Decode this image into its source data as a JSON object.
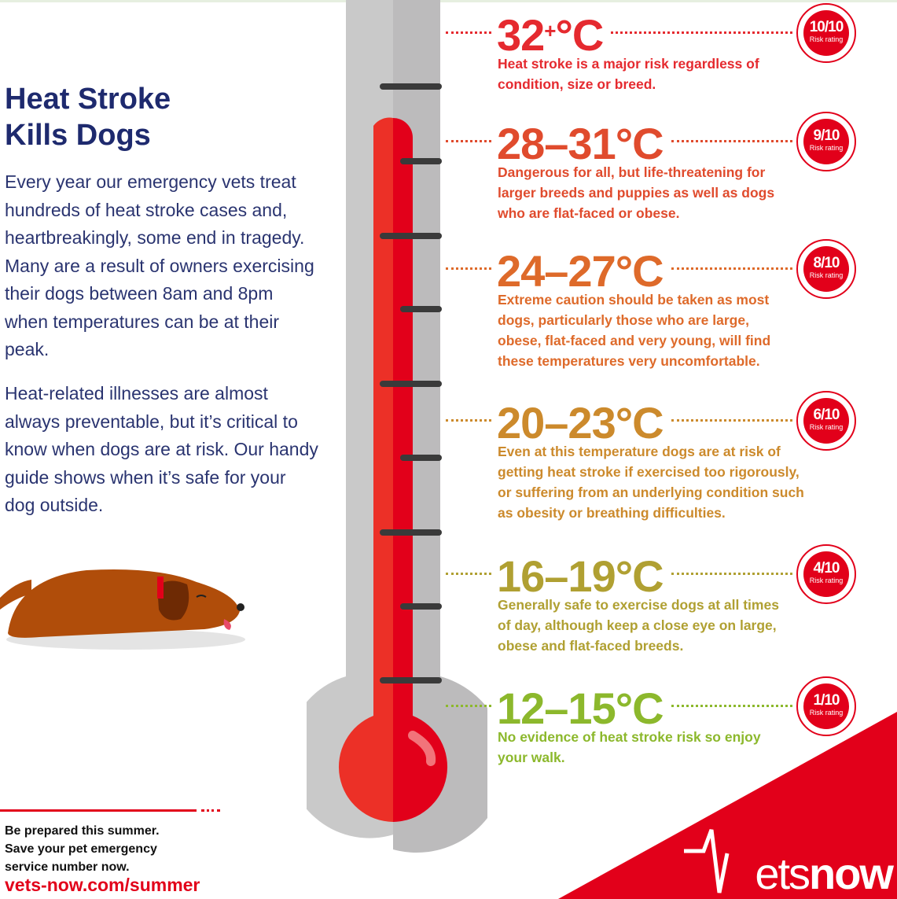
{
  "heading": {
    "line1": "Heat Stroke",
    "line2": "Kills Dogs"
  },
  "intro": {
    "paragraph1": "Every year our emergency vets treat hundreds of heat stroke cases and, heartbreakingly, some end in tragedy. Many are a result of owners exercising their dogs between 8am and 8pm when temperatures can be at their peak.",
    "paragraph2": "Heat-related illnesses are almost always preventable, but it’s critical to know when dogs are at risk. Our handy guide shows when it’s safe for your dog outside."
  },
  "levels": [
    {
      "temp": "32",
      "sup": "+",
      "unit": "°C",
      "desc": "Heat stroke is a major risk regardless of condition, size or breed.",
      "rating": "10/10",
      "rating_label": "Risk rating",
      "color": "#e52a2f"
    },
    {
      "temp": "28–31",
      "sup": "",
      "unit": "°C",
      "desc": "Dangerous for all, but life-threatening for larger breeds and puppies as well as dogs who are flat-faced or obese.",
      "rating": "9/10",
      "rating_label": "Risk rating",
      "color": "#e04b2d"
    },
    {
      "temp": "24–27",
      "sup": "",
      "unit": "°C",
      "desc": "Extreme caution should be taken as most dogs, particularly those who are large, obese, flat-faced and very young, will find these temperatures very uncomfortable.",
      "rating": "8/10",
      "rating_label": "Risk rating",
      "color": "#de6a2a"
    },
    {
      "temp": "20–23",
      "sup": "",
      "unit": "°C",
      "desc": "Even at this temperature dogs are at risk of getting heat stroke if exercised too rigorously, or suffering from an underlying condition such as obesity or breathing difficulties.",
      "rating": "6/10",
      "rating_label": "Risk rating",
      "color": "#cc8a2c"
    },
    {
      "temp": "16–19",
      "sup": "",
      "unit": "°C",
      "desc": "Generally safe to exercise dogs at all times of day, although keep a close eye on large, obese and flat-faced breeds.",
      "rating": "4/10",
      "rating_label": "Risk rating",
      "color": "#b0a032"
    },
    {
      "temp": "12–15",
      "sup": "",
      "unit": "°C",
      "desc": "No evidence of heat stroke risk so enjoy your walk.",
      "rating": "1/10",
      "rating_label": "Risk rating",
      "color": "#8cb82c"
    }
  ],
  "footer": {
    "text": "Be prepared this summer. Save your pet emergency service number now.",
    "url": "vets-now.com/summer"
  },
  "logo": {
    "text": "Vetsnow"
  },
  "colors": {
    "brand_red": "#e2001a",
    "navy": "#1e2a6e"
  },
  "icons": {
    "thermometer": "thermometer-icon",
    "dog": "dog-illustration"
  }
}
